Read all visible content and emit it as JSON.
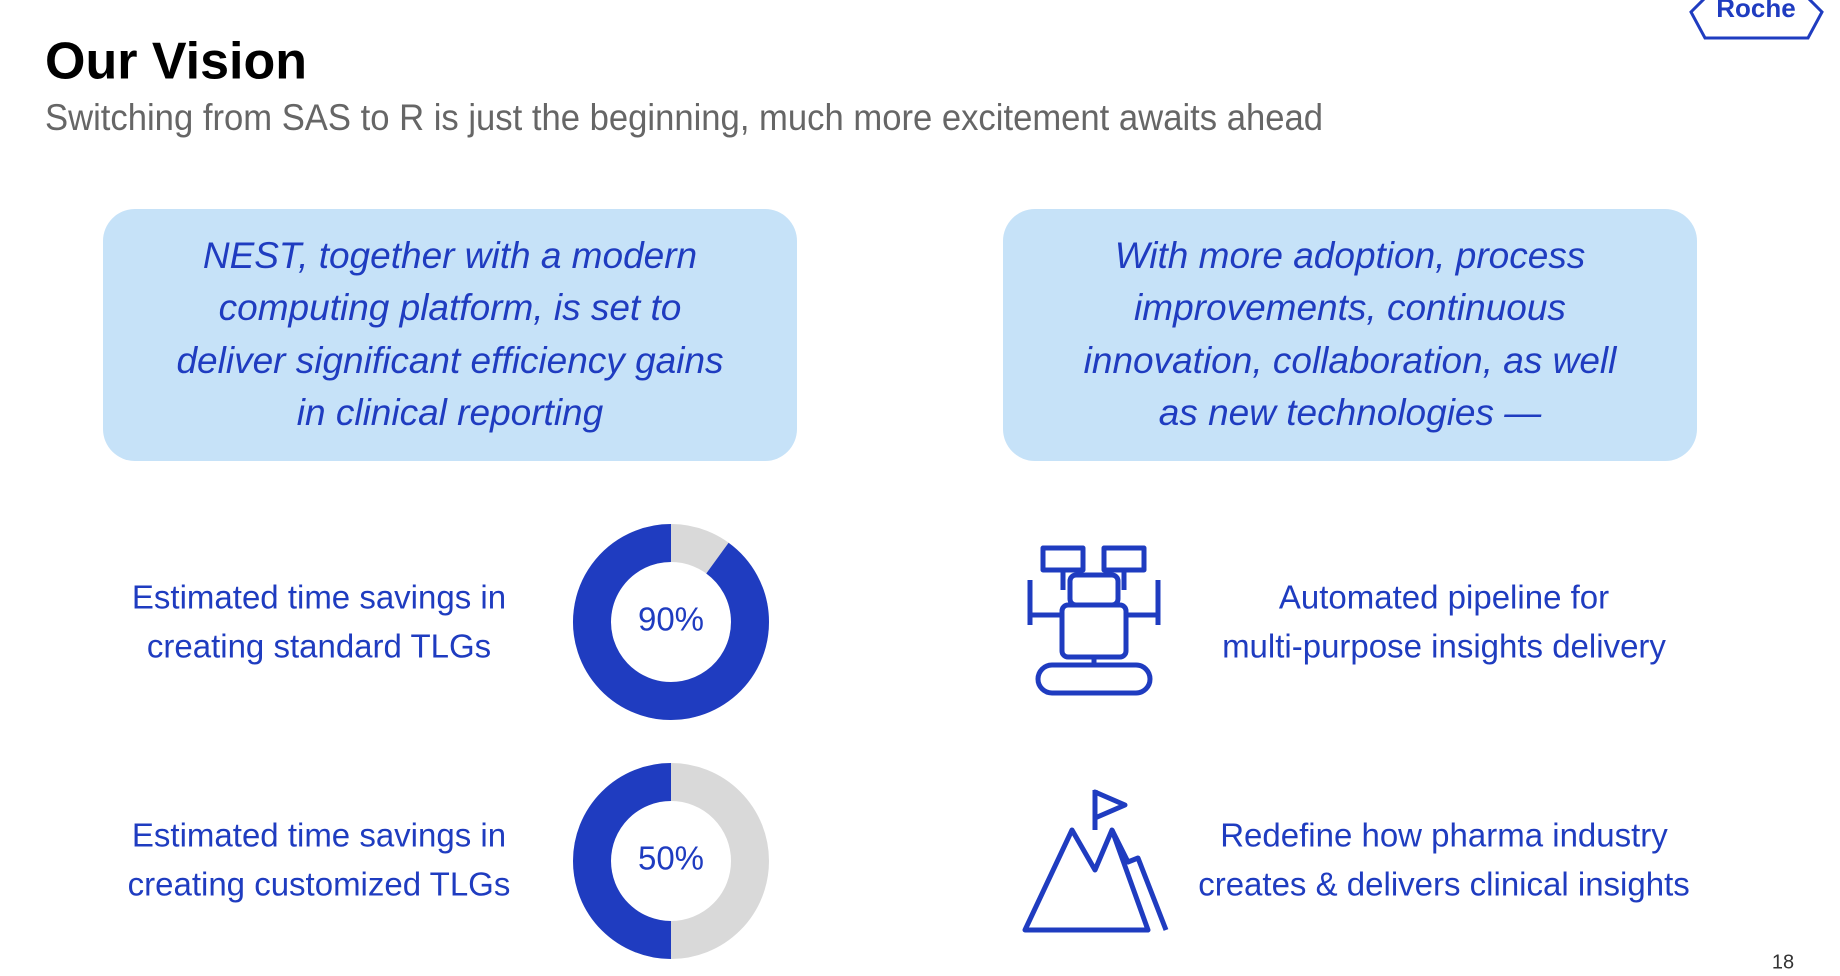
{
  "header": {
    "title": "Our Vision",
    "subtitle": "Switching from SAS to R is just the beginning, much more excitement awaits ahead"
  },
  "logo": "Roche",
  "page_number": "18",
  "boxes": [
    {
      "lines": [
        "NEST, together with a modern",
        "computing platform, is set to",
        "deliver significant efficiency gains",
        "in clinical reporting"
      ]
    },
    {
      "lines": [
        "With more adoption, process",
        "improvements, continuous",
        "innovation, collaboration, as well",
        "as new technologies —"
      ]
    }
  ],
  "metrics": [
    {
      "lines": [
        "Estimated time savings in",
        "creating standard TLGs"
      ],
      "value": 90,
      "value_label": "90%"
    },
    {
      "lines": [
        "Estimated time savings in",
        "creating customized TLGs"
      ],
      "value": 50,
      "value_label": "50%"
    }
  ],
  "outcomes": [
    {
      "lines": [
        "Automated pipeline for",
        "multi-purpose insights delivery"
      ]
    },
    {
      "lines": [
        "Redefine how pharma industry",
        "creates & delivers clinical insights"
      ]
    }
  ]
}
